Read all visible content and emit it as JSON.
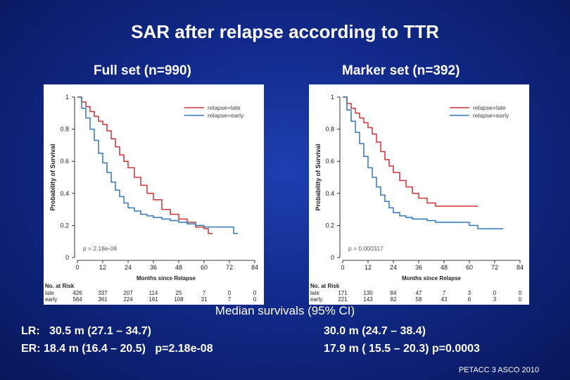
{
  "title": "SAR after relapse according to TTR",
  "panels": {
    "left_subtitle": "Full set (n=990)",
    "right_subtitle": "Marker set (n=392)"
  },
  "median_heading": "Median survivals (95% CI)",
  "stats": {
    "left_lr": "LR:   30.5 m (27.1 – 34.7)",
    "left_er": "ER: 18.4 m (16.4 – 20.5)   p=2.18e-08",
    "right_lr": "30.0 m (24.7 – 38.4)",
    "right_er": "17.9 m ( 15.5 – 20.3) p=0.0003"
  },
  "footer": "PETACC 3 ASCO 2010",
  "colors": {
    "late": "#cc3333",
    "early": "#3377bb"
  },
  "chart_data": [
    {
      "type": "line",
      "xlabel": "Months since Relapse",
      "ylabel": "Probability of Survival",
      "xlim": [
        0,
        84
      ],
      "ylim": [
        0,
        1
      ],
      "xticks": [
        0,
        12,
        24,
        36,
        48,
        60,
        72,
        84
      ],
      "yticks": [
        0,
        0.2,
        0.4,
        0.6,
        0.8,
        1
      ],
      "ytick_labels": [
        "0",
        "0.2",
        "0.4",
        "0.6",
        "0.8",
        "1"
      ],
      "legend_position": "top-right",
      "pvalue": "p = 2.18e-08",
      "series": [
        {
          "name": "relapse=late",
          "color": "#cc3333",
          "x": [
            0,
            2,
            4,
            6,
            8,
            10,
            12,
            14,
            16,
            18,
            20,
            22,
            24,
            27,
            30,
            33,
            36,
            40,
            44,
            48,
            52,
            56,
            60,
            62,
            64
          ],
          "y": [
            1,
            0.97,
            0.94,
            0.91,
            0.88,
            0.85,
            0.83,
            0.79,
            0.74,
            0.69,
            0.64,
            0.6,
            0.56,
            0.5,
            0.45,
            0.4,
            0.36,
            0.3,
            0.27,
            0.24,
            0.22,
            0.19,
            0.18,
            0.15,
            0.15
          ]
        },
        {
          "name": "relapse=early",
          "color": "#3377bb",
          "x": [
            0,
            2,
            4,
            6,
            8,
            10,
            12,
            14,
            16,
            18,
            20,
            22,
            24,
            27,
            30,
            33,
            36,
            40,
            44,
            48,
            52,
            56,
            60,
            64,
            68,
            72,
            74,
            76
          ],
          "y": [
            1,
            0.93,
            0.87,
            0.8,
            0.73,
            0.65,
            0.59,
            0.53,
            0.47,
            0.42,
            0.38,
            0.34,
            0.31,
            0.29,
            0.27,
            0.26,
            0.25,
            0.24,
            0.23,
            0.22,
            0.21,
            0.2,
            0.19,
            0.19,
            0.19,
            0.19,
            0.15,
            0.15
          ]
        }
      ],
      "risk_table": {
        "title": "No. at Risk",
        "columns": [
          "0",
          "12",
          "24",
          "36",
          "48",
          "60",
          "72",
          "84"
        ],
        "rows": [
          {
            "label": "late",
            "values": [
              "426",
              "337",
              "207",
              "114",
              "25",
              "7",
              "0",
              "0"
            ]
          },
          {
            "label": "early",
            "values": [
              "564",
              "361",
              "224",
              "161",
              "108",
              "31",
              "7",
              "0"
            ]
          }
        ]
      }
    },
    {
      "type": "line",
      "xlabel": "Months since Relapse",
      "ylabel": "Probability of Survival",
      "xlim": [
        0,
        84
      ],
      "ylim": [
        0,
        1
      ],
      "xticks": [
        0,
        12,
        24,
        36,
        48,
        60,
        72,
        84
      ],
      "yticks": [
        0,
        0.2,
        0.4,
        0.6,
        0.8,
        1
      ],
      "ytick_labels": [
        "0",
        "0.2",
        "0.4",
        "0.6",
        "0.8",
        "1"
      ],
      "legend_position": "top-right",
      "pvalue": "p = 0.000317",
      "series": [
        {
          "name": "relapse=late",
          "color": "#cc3333",
          "x": [
            0,
            2,
            4,
            6,
            8,
            10,
            12,
            14,
            16,
            18,
            20,
            22,
            24,
            27,
            30,
            33,
            36,
            40,
            44,
            48,
            52,
            56,
            60,
            64
          ],
          "y": [
            1,
            0.96,
            0.93,
            0.9,
            0.87,
            0.84,
            0.81,
            0.77,
            0.72,
            0.66,
            0.61,
            0.57,
            0.53,
            0.48,
            0.44,
            0.4,
            0.37,
            0.34,
            0.32,
            0.32,
            0.32,
            0.32,
            0.32,
            0.32
          ]
        },
        {
          "name": "relapse=early",
          "color": "#3377bb",
          "x": [
            0,
            2,
            4,
            6,
            8,
            10,
            12,
            14,
            16,
            18,
            20,
            22,
            24,
            27,
            30,
            33,
            36,
            40,
            44,
            48,
            52,
            56,
            60,
            64,
            68,
            72,
            76
          ],
          "y": [
            1,
            0.92,
            0.85,
            0.78,
            0.71,
            0.63,
            0.56,
            0.5,
            0.44,
            0.39,
            0.35,
            0.31,
            0.28,
            0.26,
            0.25,
            0.24,
            0.24,
            0.23,
            0.22,
            0.22,
            0.22,
            0.22,
            0.2,
            0.18,
            0.18,
            0.18,
            0.18
          ]
        }
      ],
      "risk_table": {
        "title": "No. at Risk",
        "columns": [
          "0",
          "12",
          "24",
          "36",
          "48",
          "60",
          "72",
          "84"
        ],
        "rows": [
          {
            "label": "late",
            "values": [
              "171",
              "130",
              "84",
              "47",
              "7",
              "3",
              "0",
              "0"
            ]
          },
          {
            "label": "early",
            "values": [
              "221",
              "143",
              "82",
              "58",
              "43",
              "6",
              "3",
              "0"
            ]
          }
        ]
      }
    }
  ]
}
